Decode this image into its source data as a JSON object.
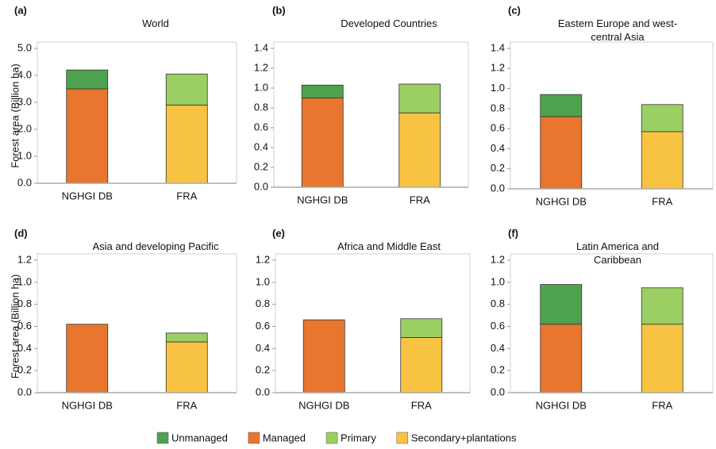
{
  "chart_data": [
    {
      "type": "bar",
      "stacked": true,
      "panel_label": "(a)",
      "title": "World",
      "ylabel": "Forest area (Billion ha)",
      "categories": [
        "NGHGI DB",
        "FRA"
      ],
      "series": [
        {
          "name": "Unmanaged",
          "color": "#4ea24e",
          "values": [
            0.7,
            null
          ]
        },
        {
          "name": "Managed",
          "color": "#e8762f",
          "values": [
            3.5,
            null
          ]
        },
        {
          "name": "Primary",
          "color": "#9ccf63",
          "values": [
            null,
            1.15
          ]
        },
        {
          "name": "Secondary+plantations",
          "color": "#f8c342",
          "values": [
            null,
            2.9
          ]
        }
      ],
      "ylim": [
        0,
        5
      ],
      "yticks": [
        {
          "value": 0,
          "label": "0.0"
        },
        {
          "value": 1,
          "label": "1.0"
        },
        {
          "value": 2,
          "label": "2.0"
        },
        {
          "value": 3,
          "label": "3.0"
        },
        {
          "value": 4,
          "label": "4.0"
        },
        {
          "value": 5,
          "label": "5.0"
        }
      ]
    },
    {
      "type": "bar",
      "stacked": true,
      "panel_label": "(b)",
      "title": "Developed Countries",
      "categories": [
        "NGHGI DB",
        "FRA"
      ],
      "series": [
        {
          "name": "Unmanaged",
          "color": "#4ea24e",
          "values": [
            0.13,
            null
          ]
        },
        {
          "name": "Managed",
          "color": "#e8762f",
          "values": [
            0.9,
            null
          ]
        },
        {
          "name": "Primary",
          "color": "#9ccf63",
          "values": [
            null,
            0.29
          ]
        },
        {
          "name": "Secondary+plantations",
          "color": "#f8c342",
          "values": [
            null,
            0.75
          ]
        }
      ],
      "ylim": [
        0,
        1.4
      ],
      "yticks": [
        {
          "value": 0,
          "label": "0.0"
        },
        0.2,
        0.4,
        0.6,
        0.8,
        {
          "value": 1,
          "label": "1.0"
        },
        1.2,
        1.4
      ]
    },
    {
      "type": "bar",
      "stacked": true,
      "panel_label": "(c)",
      "title": "Eastern Europe and west-central Asia",
      "categories": [
        "NGHGI DB",
        "FRA"
      ],
      "series": [
        {
          "name": "Unmanaged",
          "color": "#4ea24e",
          "values": [
            0.22,
            null
          ]
        },
        {
          "name": "Managed",
          "color": "#e8762f",
          "values": [
            0.72,
            null
          ]
        },
        {
          "name": "Primary",
          "color": "#9ccf63",
          "values": [
            null,
            0.27
          ]
        },
        {
          "name": "Secondary+plantations",
          "color": "#f8c342",
          "values": [
            null,
            0.57
          ]
        }
      ],
      "ylim": [
        0,
        1.4
      ],
      "yticks": [
        {
          "value": 0,
          "label": "0.0"
        },
        0.2,
        0.4,
        0.6,
        0.8,
        {
          "value": 1,
          "label": "1.0"
        },
        1.2,
        1.4
      ]
    },
    {
      "type": "bar",
      "stacked": true,
      "panel_label": "(d)",
      "title": "Asia and developing Pacific",
      "ylabel": "Forest area (Billion ha)",
      "categories": [
        "NGHGI DB",
        "FRA"
      ],
      "series": [
        {
          "name": "Unmanaged",
          "color": "#4ea24e",
          "values": [
            null,
            null
          ]
        },
        {
          "name": "Managed",
          "color": "#e8762f",
          "values": [
            0.62,
            null
          ]
        },
        {
          "name": "Primary",
          "color": "#9ccf63",
          "values": [
            null,
            0.08
          ]
        },
        {
          "name": "Secondary+plantations",
          "color": "#f8c342",
          "values": [
            null,
            0.46
          ]
        }
      ],
      "ylim": [
        0,
        1.2
      ],
      "yticks": [
        {
          "value": 0,
          "label": "0.0"
        },
        0.2,
        0.4,
        0.6,
        0.8,
        {
          "value": 1,
          "label": "1.0"
        },
        1.2
      ]
    },
    {
      "type": "bar",
      "stacked": true,
      "panel_label": "(e)",
      "title": "Africa and Middle East",
      "categories": [
        "NGHGI DB",
        "FRA"
      ],
      "series": [
        {
          "name": "Unmanaged",
          "color": "#4ea24e",
          "values": [
            null,
            null
          ]
        },
        {
          "name": "Managed",
          "color": "#e8762f",
          "values": [
            0.66,
            null
          ]
        },
        {
          "name": "Primary",
          "color": "#9ccf63",
          "values": [
            null,
            0.17
          ]
        },
        {
          "name": "Secondary+plantations",
          "color": "#f8c342",
          "values": [
            null,
            0.5
          ]
        }
      ],
      "ylim": [
        0,
        1.2
      ],
      "yticks": [
        {
          "value": 0,
          "label": "0.0"
        },
        0.2,
        0.4,
        0.6,
        0.8,
        {
          "value": 1,
          "label": "1.0"
        },
        1.2
      ]
    },
    {
      "type": "bar",
      "stacked": true,
      "panel_label": "(f)",
      "title": "Latin America and Caribbean",
      "categories": [
        "NGHGI DB",
        "FRA"
      ],
      "series": [
        {
          "name": "Unmanaged",
          "color": "#4ea24e",
          "values": [
            0.36,
            null
          ]
        },
        {
          "name": "Managed",
          "color": "#e8762f",
          "values": [
            0.62,
            null
          ]
        },
        {
          "name": "Primary",
          "color": "#9ccf63",
          "values": [
            null,
            0.33
          ]
        },
        {
          "name": "Secondary+plantations",
          "color": "#f8c342",
          "values": [
            null,
            0.62
          ]
        }
      ],
      "ylim": [
        0,
        1.2
      ],
      "yticks": [
        {
          "value": 0,
          "label": "0.0"
        },
        0.2,
        0.4,
        0.6,
        0.8,
        {
          "value": 1,
          "label": "1.0"
        },
        1.2
      ]
    }
  ]
}
